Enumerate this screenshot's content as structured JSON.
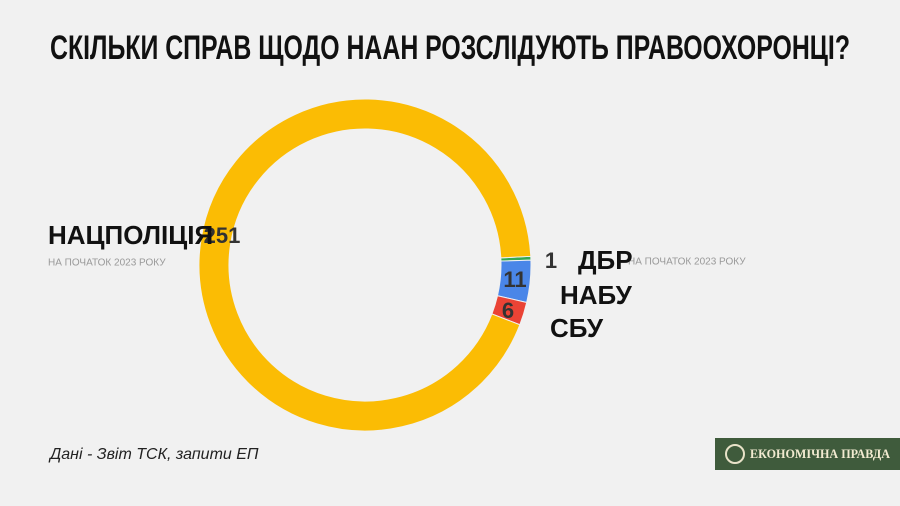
{
  "chart_data": {
    "type": "donut",
    "title": "СКІЛЬКИ СПРАВ ЩОДО НААН РОЗСЛІДУЮТЬ ПРАВООХОРОНЦІ?",
    "subtitle": "НА ПОЧАТОК 2023 РОКУ",
    "source": "Дані - Звіт ТСК, запити ЕП",
    "logo": "ЕКОНОМІЧНА ПРАВДА",
    "categories": [
      "ДБР",
      "НАБУ",
      "СБУ",
      "НАЦПОЛІЦІЯ"
    ],
    "values": [
      1,
      11,
      6,
      251
    ],
    "colors": [
      "#34a853",
      "#4a86e8",
      "#ea4335",
      "#fbbc04"
    ]
  }
}
